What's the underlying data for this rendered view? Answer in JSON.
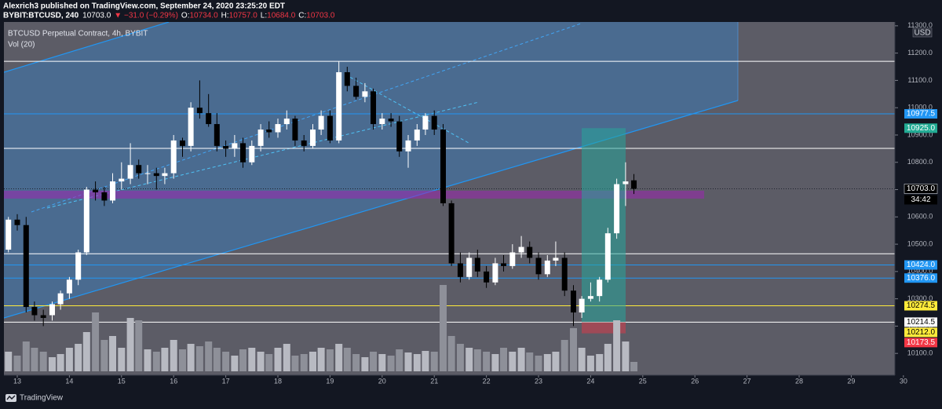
{
  "chart_data": {
    "type": "candlestick",
    "header": {
      "publisher": "Alexrich3 published on TradingView.com, September 24, 2020 23:25:20 EDT",
      "symbol": "BYBIT:BTCUSD, 240",
      "last": "10703.0",
      "change": "▼ −31.0 (−0.29%)",
      "ohlc": [
        {
          "label": "O:",
          "value": "10734.0"
        },
        {
          "label": "H:",
          "value": "10757.0"
        },
        {
          "label": "L:",
          "value": "10684.0"
        },
        {
          "label": "C:",
          "value": "10703.0"
        }
      ]
    },
    "title": "BTCUSD Perpetual Contract, 4h, BYBIT",
    "volume_title": "Vol (20)",
    "currency": "USD",
    "countdown": "34:42",
    "footer": "TradingView",
    "up_color": "#ffffff",
    "down_color": "#000000",
    "volume_colors": {
      "up": "#b8bac2",
      "down": "#8e9099"
    },
    "grid": false,
    "xlim": [
      12.744,
      29.837
    ],
    "xticks": [
      13,
      14,
      15,
      16,
      17,
      18,
      19,
      20,
      21,
      22,
      23,
      24,
      25,
      26,
      27,
      28,
      29,
      30
    ],
    "ylim": [
      10020,
      11314
    ],
    "yticks": [
      {
        "value": 10100,
        "label": "10100.0"
      },
      {
        "value": 10200,
        "label": "10200.0"
      },
      {
        "value": 10300,
        "label": "10300.0"
      },
      {
        "value": 10400,
        "label": "10400.0"
      },
      {
        "value": 10500,
        "label": "10500.0"
      },
      {
        "value": 10600,
        "label": "10600.0"
      },
      {
        "value": 10700,
        "label": "10700.0"
      },
      {
        "value": 10800,
        "label": "10800.0"
      },
      {
        "value": 10900,
        "label": "10900.0"
      },
      {
        "value": 11000,
        "label": "11000.0"
      },
      {
        "value": 11100,
        "label": "11100.0"
      },
      {
        "value": 11200,
        "label": "11200.0"
      },
      {
        "value": 11300,
        "label": "11300.0"
      }
    ],
    "volume_ylim": [
      0,
      130
    ],
    "x": [
      12.83,
      13,
      13.17,
      13.33,
      13.5,
      13.67,
      13.83,
      14,
      14.17,
      14.33,
      14.5,
      14.67,
      14.83,
      15,
      15.17,
      15.33,
      15.5,
      15.67,
      15.83,
      16,
      16.17,
      16.33,
      16.5,
      16.67,
      16.83,
      17,
      17.17,
      17.33,
      17.5,
      17.67,
      17.83,
      18,
      18.17,
      18.33,
      18.5,
      18.67,
      18.83,
      19,
      19.17,
      19.33,
      19.5,
      19.67,
      19.83,
      20,
      20.17,
      20.33,
      20.5,
      20.67,
      20.83,
      21,
      21.17,
      21.33,
      21.5,
      21.67,
      21.83,
      22,
      22.17,
      22.33,
      22.5,
      22.67,
      22.83,
      23,
      23.17,
      23.33,
      23.5,
      23.67,
      23.83,
      24,
      24.17,
      24.33,
      24.5,
      24.67,
      24.83
    ],
    "ohlc": [
      [
        10480,
        10600,
        10470,
        10590
      ],
      [
        10590,
        10610,
        10550,
        10570
      ],
      [
        10570,
        10600,
        10250,
        10270
      ],
      [
        10270,
        10290,
        10220,
        10240
      ],
      [
        10240,
        10260,
        10200,
        10230
      ],
      [
        10240,
        10290,
        10220,
        10280
      ],
      [
        10280,
        10330,
        10260,
        10320
      ],
      [
        10320,
        10380,
        10300,
        10370
      ],
      [
        10370,
        10480,
        10350,
        10470
      ],
      [
        10470,
        10710,
        10460,
        10700
      ],
      [
        10700,
        10730,
        10660,
        10690
      ],
      [
        10690,
        10710,
        10640,
        10660
      ],
      [
        10660,
        10760,
        10650,
        10730
      ],
      [
        10730,
        10800,
        10700,
        10740
      ],
      [
        10740,
        10870,
        10720,
        10790
      ],
      [
        10790,
        10810,
        10740,
        10760
      ],
      [
        10760,
        10790,
        10720,
        10760
      ],
      [
        10760,
        10780,
        10700,
        10750
      ],
      [
        10750,
        10780,
        10720,
        10760
      ],
      [
        10760,
        10900,
        10740,
        10880
      ],
      [
        10880,
        10890,
        10820,
        10860
      ],
      [
        10860,
        11020,
        10840,
        11000
      ],
      [
        11000,
        11100,
        10960,
        10980
      ],
      [
        10980,
        11050,
        10930,
        10940
      ],
      [
        10940,
        10980,
        10840,
        10860
      ],
      [
        10860,
        10880,
        10820,
        10850
      ],
      [
        10850,
        10900,
        10820,
        10870
      ],
      [
        10870,
        10890,
        10780,
        10800
      ],
      [
        10800,
        10880,
        10790,
        10860
      ],
      [
        10860,
        10940,
        10840,
        10920
      ],
      [
        10920,
        10950,
        10890,
        10910
      ],
      [
        10910,
        10960,
        10890,
        10940
      ],
      [
        10940,
        10990,
        10920,
        10960
      ],
      [
        10960,
        10970,
        10860,
        10880
      ],
      [
        10880,
        10900,
        10840,
        10860
      ],
      [
        10860,
        10940,
        10850,
        10920
      ],
      [
        10920,
        10990,
        10900,
        10970
      ],
      [
        10970,
        10990,
        10870,
        10880
      ],
      [
        10880,
        11170,
        10870,
        11130
      ],
      [
        11130,
        11150,
        11060,
        11080
      ],
      [
        11080,
        11110,
        11030,
        11040
      ],
      [
        11040,
        11090,
        11020,
        11060
      ],
      [
        11060,
        11070,
        10920,
        10940
      ],
      [
        10940,
        10980,
        10920,
        10960
      ],
      [
        10960,
        10980,
        10930,
        10950
      ],
      [
        10950,
        10970,
        10820,
        10840
      ],
      [
        10840,
        10900,
        10780,
        10880
      ],
      [
        10880,
        10940,
        10860,
        10920
      ],
      [
        10920,
        10980,
        10900,
        10970
      ],
      [
        10970,
        10990,
        10900,
        10920
      ],
      [
        10920,
        10940,
        10640,
        10650
      ],
      [
        10650,
        10660,
        10420,
        10430
      ],
      [
        10430,
        10470,
        10360,
        10380
      ],
      [
        10380,
        10470,
        10370,
        10450
      ],
      [
        10450,
        10480,
        10380,
        10400
      ],
      [
        10400,
        10420,
        10340,
        10360
      ],
      [
        10360,
        10450,
        10350,
        10430
      ],
      [
        10430,
        10460,
        10400,
        10420
      ],
      [
        10420,
        10500,
        10410,
        10470
      ],
      [
        10470,
        10530,
        10450,
        10490
      ],
      [
        10490,
        10510,
        10430,
        10450
      ],
      [
        10450,
        10470,
        10370,
        10390
      ],
      [
        10390,
        10460,
        10380,
        10440
      ],
      [
        10440,
        10510,
        10420,
        10450
      ],
      [
        10450,
        10470,
        10310,
        10330
      ],
      [
        10330,
        10350,
        10200,
        10250
      ],
      [
        10250,
        10310,
        10230,
        10300
      ],
      [
        10300,
        10360,
        10290,
        10310
      ],
      [
        10310,
        10380,
        10290,
        10370
      ],
      [
        10370,
        10560,
        10360,
        10540
      ],
      [
        10540,
        10740,
        10520,
        10720
      ],
      [
        10720,
        10800,
        10640,
        10730
      ],
      [
        10734,
        10757,
        10684,
        10703
      ]
    ],
    "volume": [
      25,
      20,
      38,
      30,
      25,
      18,
      22,
      30,
      35,
      50,
      75,
      40,
      45,
      30,
      68,
      65,
      28,
      25,
      30,
      40,
      28,
      35,
      32,
      38,
      30,
      25,
      20,
      28,
      30,
      25,
      22,
      30,
      35,
      20,
      22,
      25,
      30,
      28,
      35,
      30,
      22,
      18,
      25,
      22,
      20,
      28,
      24,
      22,
      26,
      25,
      110,
      45,
      35,
      30,
      28,
      25,
      22,
      30,
      25,
      30,
      24,
      20,
      22,
      25,
      40,
      55,
      30,
      20,
      22,
      35,
      65,
      38,
      12
    ],
    "hlines": [
      {
        "value": 11170,
        "color": "#ffffff"
      },
      {
        "value": 10851,
        "color": "#ffffff"
      },
      {
        "value": 10465,
        "color": "#ffffff"
      }
    ],
    "zone": {
      "from": 10667,
      "to": 10696,
      "color": "#9c27b0"
    },
    "levels": [
      {
        "value": 10977.5,
        "label": "10977.5",
        "color": "#2196f3",
        "text_color": "#ffffff",
        "line": "solid"
      },
      {
        "value": 10925,
        "label": "10925.0",
        "color": "#22ab94",
        "text_color": "#ffffff",
        "line": "none"
      },
      {
        "value": 10703,
        "label": "10703.0",
        "color": "#000000",
        "text_color": "#ffffff",
        "line": "dotted"
      },
      {
        "value": 10424,
        "label": "10424.0",
        "color": "#2196f3",
        "text_color": "#ffffff",
        "line": "solid"
      },
      {
        "value": 10376,
        "label": "10376.0",
        "color": "#2196f3",
        "text_color": "#ffffff",
        "line": "solid"
      },
      {
        "value": 10274.5,
        "label": "10274.5",
        "color": "#ffeb3b",
        "text_color": "#000000",
        "line": "solid"
      },
      {
        "value": 10214.5,
        "label": "10214.5",
        "color": "#ffffff",
        "text_color": "#000000",
        "line": "solid"
      },
      {
        "value": 10212,
        "label": "10212.0",
        "color": "#ffeb3b",
        "text_color": "#000000",
        "line": "none"
      },
      {
        "value": 10173.5,
        "label": "10173.5",
        "color": "#f23645",
        "text_color": "#ffffff",
        "line": "none"
      }
    ]
  }
}
